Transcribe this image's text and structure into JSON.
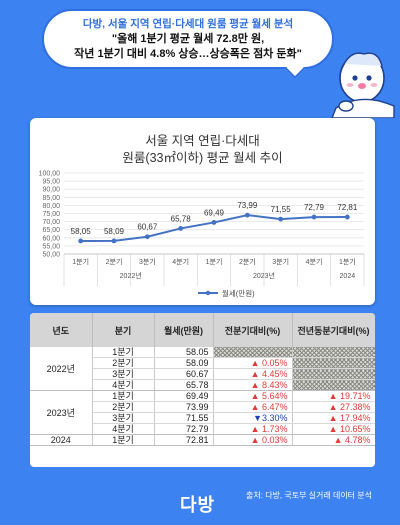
{
  "headline": {
    "subtitle": "다방, 서울 지역 연립·다세대 원룸 평균 월세 분석",
    "line1": "\"올해 1분기 평균 월세 72.8만 원,",
    "line2": "작년 1분기 대비 4.8% 상승…상승폭은 점차 둔화\""
  },
  "chart_data": {
    "type": "line",
    "title": [
      "서울 지역 연립·다세대",
      "원룸(33㎡이하) 평균 월세 추이"
    ],
    "categories": [
      "1분기",
      "2분기",
      "3분기",
      "4분기",
      "1분기",
      "2분기",
      "3분기",
      "4분기",
      "1분기"
    ],
    "year_labels": [
      "2022년",
      "2023년",
      "2024"
    ],
    "series": [
      {
        "name": "월세(만원)",
        "values": [
          58.05,
          58.09,
          60.67,
          65.78,
          69.49,
          73.99,
          71.55,
          72.79,
          72.81
        ]
      }
    ],
    "data_labels": [
      "58,05",
      "58,09",
      "60,67",
      "65,78",
      "69,49",
      "73,99",
      "71,55",
      "72,79",
      "72,81"
    ],
    "yticks": [
      "50,00",
      "55,00",
      "60,00",
      "65,00",
      "70,00",
      "75,00",
      "80,00",
      "85,00",
      "90,00",
      "95,00",
      "100,00"
    ],
    "ylim": [
      50,
      100
    ],
    "legend": "bottom",
    "color": "#4472c4"
  },
  "table": {
    "headers": [
      "년도",
      "분기",
      "월세(만원)",
      "전분기대비(%)",
      "전년동분기대비(%)"
    ],
    "groups": [
      {
        "year": "2022년",
        "rows": [
          {
            "quarter": "1분기",
            "rent": "58.05",
            "qoq": "",
            "yoy": ""
          },
          {
            "quarter": "2분기",
            "rent": "58.09",
            "qoq": "▲ 0.05%",
            "yoy": ""
          },
          {
            "quarter": "3분기",
            "rent": "60.67",
            "qoq": "▲ 4.45%",
            "yoy": ""
          },
          {
            "quarter": "4분기",
            "rent": "65.78",
            "qoq": "▲ 8.43%",
            "yoy": ""
          }
        ]
      },
      {
        "year": "2023년",
        "rows": [
          {
            "quarter": "1분기",
            "rent": "69.49",
            "qoq": "▲ 5.64%",
            "yoy": "▲ 19.71%"
          },
          {
            "quarter": "2분기",
            "rent": "73.99",
            "qoq": "▲ 6.47%",
            "yoy": "▲ 27.38%"
          },
          {
            "quarter": "3분기",
            "rent": "71.55",
            "qoq": "▼3.30%",
            "yoy": "▲ 17.94%"
          },
          {
            "quarter": "4분기",
            "rent": "72.79",
            "qoq": "▲ 1.73%",
            "yoy": "▲ 10.65%"
          }
        ]
      },
      {
        "year": "2024",
        "rows": [
          {
            "quarter": "1분기",
            "rent": "72.81",
            "qoq": "▲ 0.03%",
            "yoy": "▲ 4.78%"
          }
        ]
      }
    ]
  },
  "footer": {
    "logo": "다방",
    "source": "출처: 다방, 국토부 실거래 데이터 분석"
  },
  "colors": {
    "background": "#3c82f0",
    "up": "#e53935",
    "down": "#1e40b0"
  }
}
